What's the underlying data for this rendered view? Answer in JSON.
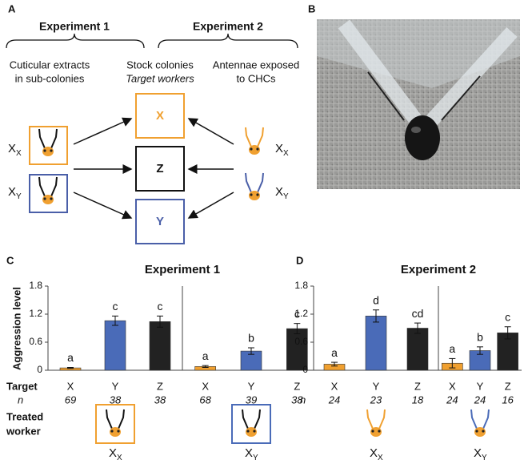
{
  "figure": {
    "panel_labels": [
      "A",
      "B",
      "C",
      "D"
    ]
  },
  "diagram": {
    "experiment_1": "Experiment 1",
    "experiment_2": "Experiment 2",
    "col_left": [
      "Cuticular extracts",
      "in sub-colonies"
    ],
    "col_mid": [
      "Stock colonies",
      "Target workers"
    ],
    "col_right": [
      "Antennae exposed",
      "to CHCs"
    ],
    "targets": [
      "X",
      "Z",
      "Y"
    ],
    "left_labels": [
      {
        "base": "X",
        "sub": "X"
      },
      {
        "base": "X",
        "sub": "Y"
      }
    ],
    "right_labels": [
      {
        "base": "X",
        "sub": "X"
      },
      {
        "base": "X",
        "sub": "Y"
      }
    ]
  },
  "chart_data": [
    {
      "type": "bar",
      "title": "Experiment 1",
      "ylabel": "Aggression level",
      "target_label": "Target",
      "n_label": "n",
      "treated_label": [
        "Treated",
        "worker"
      ],
      "categories": [
        "X",
        "Y",
        "Z"
      ],
      "values": [
        0.05,
        1.06,
        1.04
      ],
      "errors": [
        0.01,
        0.1,
        0.12
      ],
      "letters": [
        "a",
        "c",
        "c"
      ],
      "n": [
        69,
        38,
        38
      ],
      "colors": [
        "#f0a030",
        "#4a6bb8",
        "#222222"
      ],
      "ylim": [
        0,
        1.8
      ],
      "yticks": [
        0,
        0.6,
        1.2,
        1.8
      ],
      "treated": {
        "base": "X",
        "sub": "X",
        "color": "#f0a030",
        "boxed": true
      }
    },
    {
      "type": "bar",
      "categories": [
        "X",
        "Y",
        "Z"
      ],
      "values": [
        0.08,
        0.41,
        0.89
      ],
      "errors": [
        0.02,
        0.07,
        0.11
      ],
      "letters": [
        "a",
        "b",
        "c"
      ],
      "n": [
        68,
        39,
        38
      ],
      "colors": [
        "#f0a030",
        "#4a6bb8",
        "#222222"
      ],
      "ylim": [
        0,
        1.8
      ],
      "treated": {
        "base": "X",
        "sub": "Y",
        "color": "#4a6bb8",
        "boxed": true
      }
    },
    {
      "type": "bar",
      "title": "Experiment 2",
      "n_label": "n",
      "categories": [
        "X",
        "Y",
        "Z"
      ],
      "values": [
        0.13,
        1.16,
        0.9
      ],
      "errors": [
        0.04,
        0.13,
        0.11
      ],
      "letters": [
        "a",
        "d",
        "cd"
      ],
      "n": [
        24,
        23,
        18
      ],
      "colors": [
        "#f0a030",
        "#4a6bb8",
        "#222222"
      ],
      "ylim": [
        0,
        1.8
      ],
      "yticks": [
        0,
        0.6,
        1.2,
        1.8
      ],
      "treated": {
        "base": "X",
        "sub": "X",
        "color": "#f0a030",
        "boxed": false
      }
    },
    {
      "type": "bar",
      "categories": [
        "X",
        "Y",
        "Z"
      ],
      "values": [
        0.15,
        0.42,
        0.8
      ],
      "errors": [
        0.1,
        0.08,
        0.13
      ],
      "letters": [
        "a",
        "b",
        "c"
      ],
      "n": [
        24,
        24,
        16
      ],
      "colors": [
        "#f0a030",
        "#4a6bb8",
        "#222222"
      ],
      "ylim": [
        0,
        1.8
      ],
      "treated": {
        "base": "X",
        "sub": "Y",
        "color": "#4a6bb8",
        "boxed": false
      }
    }
  ]
}
